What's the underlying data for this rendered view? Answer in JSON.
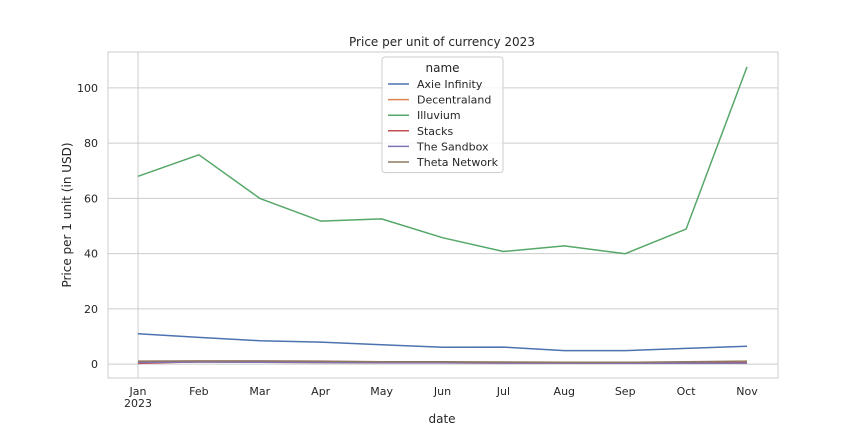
{
  "chart_data": {
    "type": "line",
    "title": "Price per unit of currency 2023",
    "xlabel": "date",
    "ylabel": "Price per 1 unit (in USD)",
    "x_tick_labels": [
      "Jan",
      "Feb",
      "Mar",
      "Apr",
      "May",
      "Jun",
      "Jul",
      "Aug",
      "Sep",
      "Oct",
      "Nov"
    ],
    "x_year_label": "2023",
    "y_ticks": [
      0,
      20,
      40,
      60,
      80,
      100
    ],
    "ylim": [
      -5,
      113
    ],
    "grid": true,
    "legend_title": "name",
    "legend_position": "top-center",
    "series": [
      {
        "name": "Axie Infinity",
        "color": "#4c72b0",
        "values": [
          11.0,
          9.7,
          8.5,
          8.0,
          7.0,
          6.1,
          6.2,
          4.9,
          4.9,
          5.7,
          6.5
        ]
      },
      {
        "name": "Decentraland",
        "color": "#dd8452",
        "values": [
          0.7,
          0.8,
          0.7,
          0.6,
          0.5,
          0.5,
          0.4,
          0.4,
          0.35,
          0.35,
          0.4
        ]
      },
      {
        "name": "Illuvium",
        "color": "#55a868",
        "values": [
          68.0,
          75.8,
          60.0,
          51.8,
          52.6,
          45.8,
          40.8,
          42.8,
          40.0,
          48.9,
          107.6
        ]
      },
      {
        "name": "Stacks",
        "color": "#c44e52",
        "values": [
          0.3,
          0.9,
          0.9,
          0.8,
          0.7,
          0.6,
          0.6,
          0.6,
          0.5,
          0.5,
          0.6
        ]
      },
      {
        "name": "The Sandbox",
        "color": "#8172b3",
        "values": [
          0.6,
          0.8,
          0.7,
          0.6,
          0.5,
          0.5,
          0.4,
          0.4,
          0.35,
          0.35,
          0.4
        ]
      },
      {
        "name": "Theta Network",
        "color": "#937860",
        "values": [
          1.1,
          1.2,
          1.2,
          1.1,
          0.9,
          0.9,
          0.8,
          0.7,
          0.7,
          0.9,
          1.1
        ]
      }
    ]
  }
}
